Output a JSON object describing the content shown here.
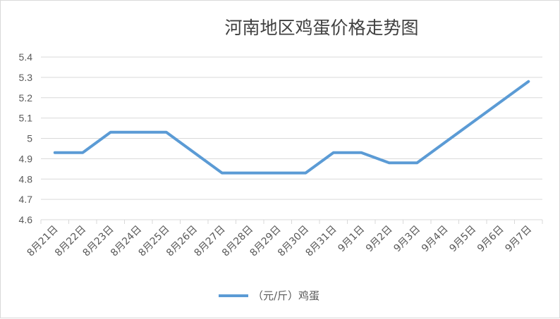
{
  "chart_data": {
    "type": "line",
    "title": "河南地区鸡蛋价格走势图",
    "xlabel": "",
    "ylabel": "",
    "categories": [
      "8月21日",
      "8月22日",
      "8月23日",
      "8月24日",
      "8月25日",
      "8月26日",
      "8月27日",
      "8月28日",
      "8月29日",
      "8月30日",
      "8月31日",
      "9月1日",
      "9月2日",
      "9月3日",
      "9月4日",
      "9月5日",
      "9月6日",
      "9月7日"
    ],
    "series": [
      {
        "name": "（元/斤）鸡蛋",
        "values": [
          4.93,
          4.93,
          5.03,
          5.03,
          5.03,
          null,
          4.83,
          4.83,
          4.83,
          4.83,
          4.93,
          4.93,
          4.88,
          4.88,
          null,
          null,
          null,
          5.28
        ],
        "color": "#5b9bd5"
      }
    ],
    "yticks": [
      "4.6",
      "4.7",
      "4.8",
      "4.9",
      "5",
      "5.1",
      "5.2",
      "5.3",
      "5.4"
    ],
    "ylim": [
      4.6,
      5.4
    ],
    "grid": true,
    "legend_position": "bottom",
    "gridline_color": "#d9d9d9"
  }
}
